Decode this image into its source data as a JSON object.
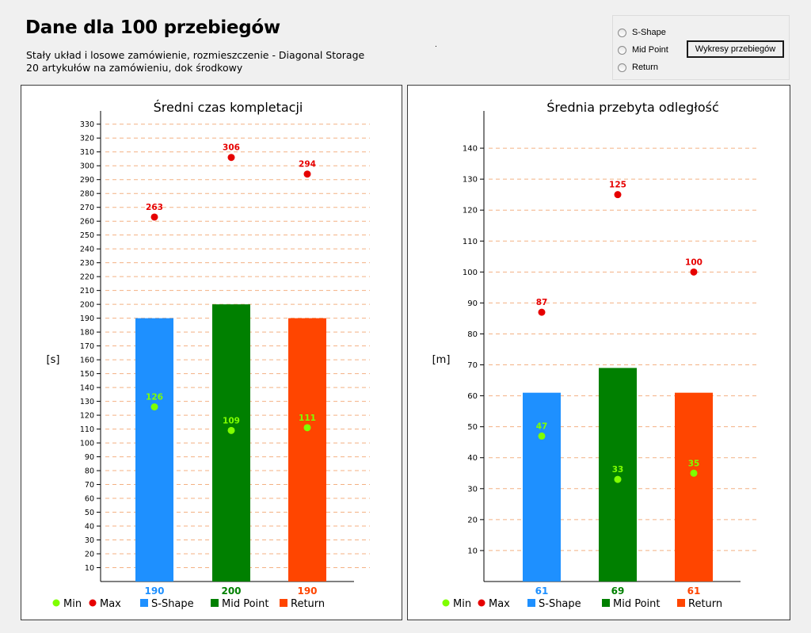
{
  "header": {
    "title": "Dane dla 100 przebiegów",
    "subtitle_line1": "Stały układ i losowe zamówienie, rozmieszczenie - Diagonal Storage",
    "subtitle_line2": "20 artykułów na zamówieniu, dok środkowy",
    "dot": "."
  },
  "options": {
    "radios": [
      "S-Shape",
      "Mid Point",
      "Return"
    ],
    "button_label": "Wykresy przebiegów"
  },
  "colors": {
    "s_shape": "#1e90ff",
    "mid_point": "#008000",
    "return": "#ff4500",
    "min": "#7fff00",
    "max": "#e60000",
    "grid": "#f4b183"
  },
  "chart_data": [
    {
      "type": "bar",
      "title": "Średni czas kompletacji",
      "ylabel": "[s]",
      "ylim": [
        0,
        335
      ],
      "yticks": [
        10,
        20,
        30,
        40,
        50,
        60,
        70,
        80,
        90,
        100,
        110,
        120,
        130,
        140,
        150,
        160,
        170,
        180,
        190,
        200,
        210,
        220,
        230,
        240,
        250,
        260,
        270,
        280,
        290,
        300,
        310,
        320,
        330
      ],
      "categories": [
        "S-Shape",
        "Mid Point",
        "Return"
      ],
      "values": [
        190,
        200,
        190
      ],
      "value_labels": [
        "190",
        "200",
        "190"
      ],
      "min": [
        126,
        109,
        111
      ],
      "max": [
        263,
        306,
        294
      ],
      "grid": true,
      "legend": [
        "Min",
        "Max",
        "S-Shape",
        "Mid Point",
        "Return"
      ],
      "legend_position": "bottom"
    },
    {
      "type": "bar",
      "title": "Średnia przebyta odległość",
      "ylabel": "[m]",
      "ylim": [
        0,
        150
      ],
      "yticks": [
        10,
        20,
        30,
        40,
        50,
        60,
        70,
        80,
        90,
        100,
        110,
        120,
        130,
        140
      ],
      "categories": [
        "S-Shape",
        "Mid Point",
        "Return"
      ],
      "values": [
        61,
        69,
        61
      ],
      "value_labels": [
        "61",
        "69",
        "61"
      ],
      "min": [
        47,
        33,
        35
      ],
      "max": [
        87,
        125,
        100
      ],
      "grid": true,
      "legend": [
        "Min",
        "Max",
        "S-Shape",
        "Mid Point",
        "Return"
      ],
      "legend_position": "bottom"
    }
  ]
}
